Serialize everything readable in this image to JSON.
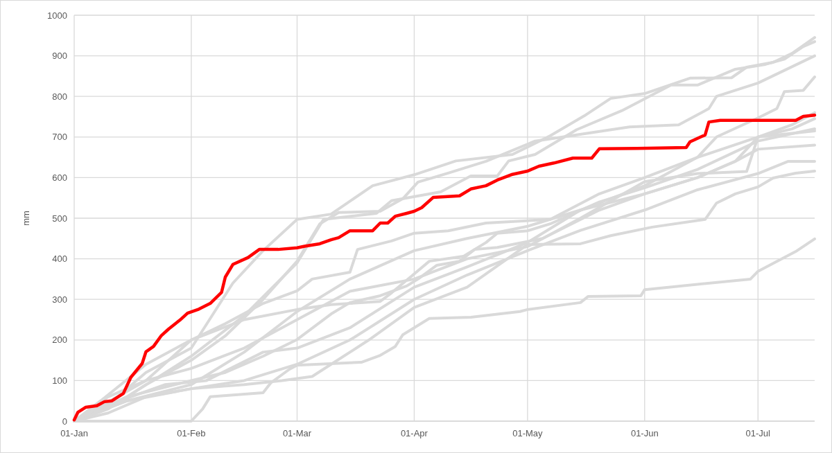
{
  "chart_data": {
    "type": "line",
    "ylabel": "mm",
    "xlim": [
      "--01-01",
      "--07-16"
    ],
    "xticks": [
      {
        "value": "--01-01",
        "label": "01-Jan"
      },
      {
        "value": "--02-01",
        "label": "01-Feb"
      },
      {
        "value": "--03-01",
        "label": "01-Mar"
      },
      {
        "value": "--04-01",
        "label": "01-Apr"
      },
      {
        "value": "--05-01",
        "label": "01-May"
      },
      {
        "value": "--06-01",
        "label": "01-Jun"
      },
      {
        "value": "--07-01",
        "label": "01-Jul"
      }
    ],
    "ylim": [
      0,
      1000
    ],
    "yticks": [
      0,
      100,
      200,
      300,
      400,
      500,
      600,
      700,
      800,
      900,
      1000
    ],
    "grid": true,
    "marker": "none",
    "line_style": "solid",
    "series": [
      {
        "color": "#d9d9d9",
        "x": [
          "--01-01",
          "--01-10",
          "--01-20",
          "--02-01",
          "--02-12",
          "--02-20",
          "--03-01",
          "--03-10",
          "--03-21",
          "--04-01",
          "--04-12",
          "--04-27",
          "--05-07",
          "--05-16",
          "--05-23",
          "--06-01",
          "--06-13",
          "--06-24",
          "--06-28",
          "--07-05",
          "--07-10",
          "--07-16"
        ],
        "values": [
          0,
          40,
          120,
          180,
          340,
          420,
          497,
          510,
          580,
          607,
          641,
          657,
          703,
          752,
          795,
          807,
          845,
          846,
          872,
          884,
          906,
          945
        ]
      },
      {
        "color": "#d9d9d9",
        "x": [
          "--01-01",
          "--01-15",
          "--02-01",
          "--02-15",
          "--03-01",
          "--03-08",
          "--03-22",
          "--03-26",
          "--04-08",
          "--04-16",
          "--04-23",
          "--04-26",
          "--05-03",
          "--05-14",
          "--05-26",
          "--06-08",
          "--06-15",
          "--06-25",
          "--07-03",
          "--07-08",
          "--07-13",
          "--07-16"
        ],
        "values": [
          0,
          60,
          160,
          260,
          390,
          497,
          512,
          543,
          565,
          604,
          604,
          641,
          657,
          718,
          765,
          828,
          828,
          867,
          879,
          892,
          923,
          935
        ]
      },
      {
        "color": "#d9d9d9",
        "x": [
          "--01-01",
          "--01-10",
          "--01-20",
          "--02-01",
          "--02-10",
          "--02-20",
          "--03-01",
          "--03-07",
          "--03-12",
          "--03-23",
          "--03-29",
          "--04-02",
          "--04-10",
          "--04-20",
          "--05-03",
          "--05-28",
          "--06-10",
          "--06-18",
          "--06-20",
          "--07-01",
          "--07-16"
        ],
        "values": [
          0,
          30,
          90,
          150,
          210,
          300,
          394,
          486,
          514,
          517,
          548,
          589,
          611,
          640,
          690,
          725,
          730,
          770,
          800,
          833,
          900
        ]
      },
      {
        "color": "#d9d9d9",
        "x": [
          "--01-01",
          "--01-15",
          "--02-01",
          "--02-15",
          "--03-01",
          "--03-15",
          "--04-01",
          "--04-15",
          "--05-01",
          "--05-15",
          "--06-01",
          "--06-15",
          "--06-20",
          "--07-01",
          "--07-06",
          "--07-08",
          "--07-13",
          "--07-16"
        ],
        "values": [
          0,
          50,
          90,
          170,
          270,
          350,
          420,
          450,
          480,
          520,
          580,
          650,
          700,
          747,
          770,
          812,
          815,
          848
        ]
      },
      {
        "color": "#d9d9d9",
        "x": [
          "--01-01",
          "--01-10",
          "--01-20",
          "--02-01",
          "--02-10",
          "--02-20",
          "--03-01",
          "--03-05",
          "--03-15",
          "--03-17",
          "--03-26",
          "--04-01",
          "--04-10",
          "--04-20",
          "--05-07",
          "--05-20",
          "--06-01",
          "--06-15",
          "--07-01",
          "--07-10",
          "--07-16"
        ],
        "values": [
          0,
          60,
          100,
          200,
          240,
          290,
          321,
          350,
          367,
          423,
          444,
          463,
          469,
          488,
          497,
          560,
          600,
          650,
          700,
          730,
          760
        ]
      },
      {
        "color": "#d9d9d9",
        "x": [
          "--01-01",
          "--01-08",
          "--01-20",
          "--02-01",
          "--02-15",
          "--03-01",
          "--03-10",
          "--03-23",
          "--03-26",
          "--03-31",
          "--04-05",
          "--04-14",
          "--04-20",
          "--04-23",
          "--05-01",
          "--05-07",
          "--05-20",
          "--06-01",
          "--06-15",
          "--07-01",
          "--07-16"
        ],
        "values": [
          0,
          50,
          140,
          200,
          250,
          275,
          287,
          295,
          316,
          355,
          394,
          406,
          440,
          463,
          469,
          486,
          540,
          575,
          620,
          690,
          720
        ]
      },
      {
        "color": "#d9d9d9",
        "x": [
          "--01-01",
          "--01-15",
          "--02-01",
          "--02-10",
          "--02-20",
          "--03-01",
          "--03-10",
          "--03-15",
          "--03-23",
          "--03-30",
          "--04-02",
          "--04-07",
          "--04-13",
          "--04-17",
          "--04-23",
          "--05-05",
          "--05-20",
          "--06-01",
          "--06-15",
          "--06-25",
          "--07-01",
          "--07-16"
        ],
        "values": [
          0,
          60,
          100,
          120,
          160,
          201,
          264,
          292,
          309,
          333,
          350,
          384,
          394,
          423,
          428,
          450,
          520,
          560,
          600,
          640,
          700,
          715
        ]
      },
      {
        "color": "#d9d9d9",
        "x": [
          "--01-01",
          "--01-10",
          "--01-25",
          "--02-05",
          "--02-20",
          "--03-01",
          "--03-15",
          "--04-01",
          "--04-15",
          "--05-01",
          "--05-15",
          "--06-01",
          "--06-15",
          "--06-25",
          "--07-01",
          "--07-16"
        ],
        "values": [
          0,
          40,
          90,
          100,
          170,
          180,
          230,
          330,
          380,
          440,
          520,
          560,
          600,
          640,
          670,
          680
        ]
      },
      {
        "color": "#d9d9d9",
        "x": [
          "--01-01",
          "--01-15",
          "--02-01",
          "--02-15",
          "--03-01",
          "--03-15",
          "--04-01",
          "--04-15",
          "--05-01",
          "--05-15",
          "--06-01",
          "--06-15",
          "--07-01",
          "--07-09",
          "--07-16"
        ],
        "values": [
          0,
          50,
          80,
          100,
          140,
          200,
          300,
          360,
          420,
          470,
          520,
          570,
          610,
          640,
          640
        ]
      },
      {
        "color": "#d9d9d9",
        "x": [
          "--01-01",
          "--01-10",
          "--01-20",
          "--02-01",
          "--02-15",
          "--02-25",
          "--03-05",
          "--03-20",
          "--04-01",
          "--04-15",
          "--05-01",
          "--05-15",
          "--05-23",
          "--06-03",
          "--06-17",
          "--06-20",
          "--06-25",
          "--07-01",
          "--07-05",
          "--07-11",
          "--07-16"
        ],
        "values": [
          0,
          20,
          60,
          80,
          90,
          100,
          110,
          200,
          280,
          330,
          435,
          437,
          457,
          478,
          497,
          537,
          560,
          577,
          599,
          611,
          616
        ]
      },
      {
        "color": "#d9d9d9",
        "x": [
          "--01-01",
          "--02-01",
          "--02-04",
          "--02-06",
          "--02-20",
          "--02-22",
          "--02-27",
          "--03-01",
          "--03-18",
          "--03-23",
          "--03-27",
          "--03-29",
          "--04-05",
          "--04-16",
          "--04-29",
          "--05-01",
          "--05-15",
          "--05-17",
          "--05-31",
          "--06-01",
          "--06-29",
          "--07-01",
          "--07-11",
          "--07-16"
        ],
        "values": [
          0,
          0,
          30,
          60,
          70,
          94,
          128,
          138,
          145,
          162,
          184,
          213,
          253,
          256,
          270,
          275,
          292,
          307,
          309,
          324,
          350,
          369,
          418,
          449
        ]
      },
      {
        "color": "#d9d9d9",
        "x": [
          "--01-01",
          "--01-20",
          "--02-01",
          "--02-15",
          "--03-01",
          "--03-15",
          "--04-01",
          "--04-15",
          "--05-01",
          "--05-15",
          "--06-01",
          "--06-15",
          "--06-28",
          "--07-01",
          "--07-10",
          "--07-16"
        ],
        "values": [
          0,
          100,
          130,
          180,
          250,
          320,
          350,
          400,
          430,
          500,
          590,
          610,
          615,
          700,
          720,
          745
        ]
      },
      {
        "color": "#ff0000",
        "x": [
          "--01-01",
          "--01-02",
          "--01-04",
          "--01-07",
          "--01-09",
          "--01-11",
          "--01-14",
          "--01-16",
          "--01-19",
          "--01-20",
          "--01-22",
          "--01-24",
          "--01-26",
          "--01-29",
          "--01-31",
          "--02-03",
          "--02-06",
          "--02-09",
          "--02-10",
          "--02-12",
          "--02-16",
          "--02-19",
          "--02-24",
          "--03-01",
          "--03-03",
          "--03-07",
          "--03-10",
          "--03-12",
          "--03-15",
          "--03-21",
          "--03-23",
          "--03-25",
          "--03-27",
          "--03-30",
          "--04-01",
          "--04-03",
          "--04-06",
          "--04-13",
          "--04-16",
          "--04-20",
          "--04-23",
          "--04-27",
          "--05-01",
          "--05-04",
          "--05-08",
          "--05-13",
          "--05-18",
          "--05-20",
          "--05-30",
          "--06-12",
          "--06-13",
          "--06-16",
          "--06-17",
          "--06-18",
          "--06-21",
          "--07-11",
          "--07-13",
          "--07-16"
        ],
        "values": [
          3,
          22,
          34,
          38,
          48,
          50,
          68,
          108,
          142,
          171,
          184,
          210,
          227,
          249,
          266,
          276,
          290,
          317,
          355,
          386,
          403,
          423,
          423,
          427,
          431,
          437,
          447,
          452,
          469,
          469,
          488,
          488,
          505,
          512,
          517,
          526,
          551,
          555,
          572,
          580,
          594,
          608,
          616,
          628,
          636,
          648,
          648,
          671,
          672,
          674,
          688,
          701,
          705,
          737,
          741,
          741,
          751,
          754
        ]
      }
    ]
  }
}
